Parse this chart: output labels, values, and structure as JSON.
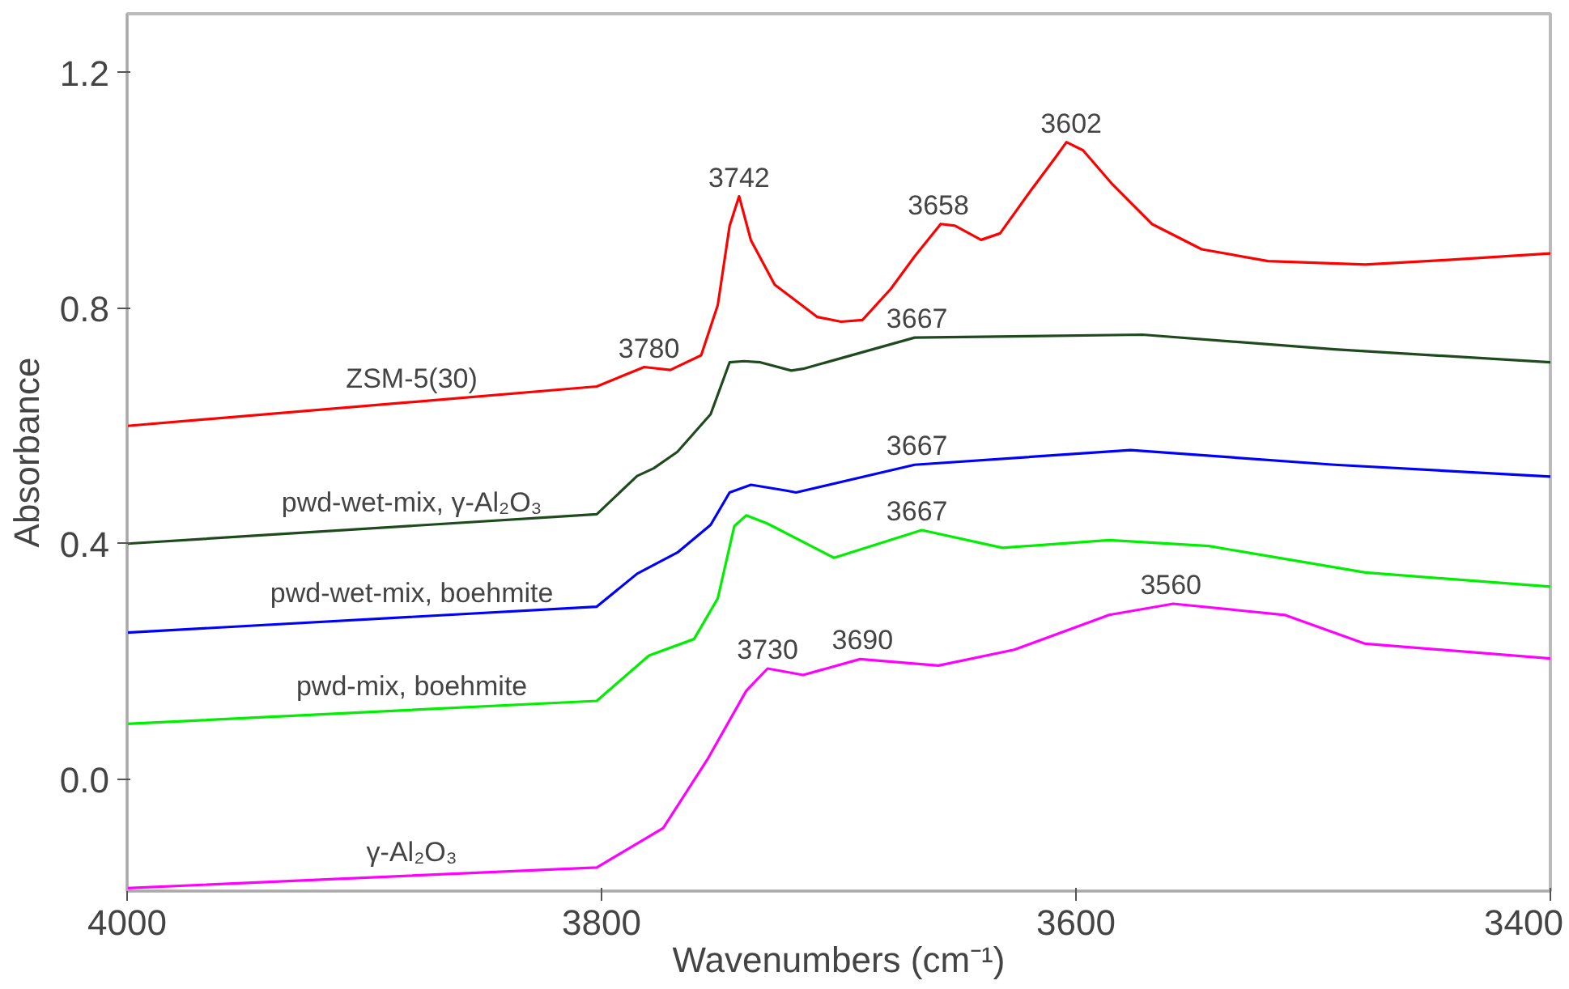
{
  "chart_data": {
    "type": "line",
    "xlabel": "Wavenumbers (cm⁻¹)",
    "ylabel": "Absorbance",
    "xlim": [
      4000,
      3400
    ],
    "ylim": [
      -0.19,
      1.3
    ],
    "xticks": [
      4000,
      3800,
      3600,
      3400
    ],
    "yticks": [
      {
        "value": 0,
        "label": "0.0"
      },
      {
        "value": 0.4,
        "label": "0.4"
      },
      {
        "value": 0.8,
        "label": "0.8"
      },
      {
        "value": 1.2,
        "label": "1.2"
      }
    ],
    "grid": false,
    "marker": "none",
    "line_style": "solid",
    "series": [
      {
        "name": "ZSM-5(30)",
        "color": "#ff0000",
        "x": [
          4000,
          3802,
          3782,
          3771,
          3758,
          3751,
          3746,
          3742,
          3737,
          3727,
          3709,
          3699,
          3690,
          3678,
          3668,
          3657,
          3651,
          3640,
          3632,
          3619,
          3609,
          3604,
          3597,
          3585,
          3568,
          3547,
          3519,
          3478,
          3443,
          3400
        ],
        "values": [
          0.6,
          0.667,
          0.7,
          0.695,
          0.72,
          0.805,
          0.94,
          0.99,
          0.915,
          0.84,
          0.785,
          0.777,
          0.78,
          0.833,
          0.888,
          0.943,
          0.94,
          0.916,
          0.927,
          1.0,
          1.054,
          1.082,
          1.068,
          1.012,
          0.943,
          0.9,
          0.88,
          0.874,
          0.882,
          0.893
        ]
      },
      {
        "name": "pwd-wet-mix, γ-Al₂O₃",
        "color": "#1e4a1e",
        "x": [
          4000,
          3802,
          3785,
          3778,
          3768,
          3754,
          3746,
          3740,
          3733,
          3720,
          3715,
          3668,
          3572,
          3491,
          3400
        ],
        "values": [
          0.4,
          0.45,
          0.515,
          0.528,
          0.556,
          0.62,
          0.708,
          0.71,
          0.708,
          0.694,
          0.697,
          0.75,
          0.755,
          0.73,
          0.708
        ]
      },
      {
        "name": "pwd-wet-mix, boehmite",
        "color": "#0000ff",
        "x": [
          4000,
          3802,
          3785,
          3768,
          3754,
          3746,
          3737,
          3722,
          3718,
          3668,
          3577,
          3491,
          3400
        ],
        "values": [
          0.249,
          0.293,
          0.349,
          0.385,
          0.432,
          0.487,
          0.5,
          0.49,
          0.487,
          0.534,
          0.559,
          0.534,
          0.514
        ]
      },
      {
        "name": "pwd-mix, boehmite",
        "color": "#00ee00",
        "x": [
          4000,
          3802,
          3780,
          3761,
          3751,
          3744,
          3739,
          3730,
          3702,
          3665,
          3631,
          3586,
          3544,
          3478,
          3400
        ],
        "values": [
          0.094,
          0.133,
          0.21,
          0.238,
          0.307,
          0.43,
          0.448,
          0.434,
          0.376,
          0.423,
          0.393,
          0.406,
          0.396,
          0.351,
          0.327
        ]
      },
      {
        "name": "γ-Al₂O₃",
        "color": "#ff00ff",
        "x": [
          4000,
          3802,
          3774,
          3755,
          3739,
          3730,
          3715,
          3691,
          3658,
          3626,
          3586,
          3559,
          3512,
          3478,
          3400
        ],
        "values": [
          -0.185,
          -0.15,
          -0.083,
          0.036,
          0.15,
          0.188,
          0.177,
          0.204,
          0.193,
          0.22,
          0.279,
          0.298,
          0.279,
          0.23,
          0.205
        ]
      }
    ],
    "annotations": [
      {
        "text": "3780",
        "x": 3780,
        "y": 0.7
      },
      {
        "text": "3742",
        "x": 3742,
        "y": 0.99
      },
      {
        "text": "3658",
        "x": 3658,
        "y": 0.943
      },
      {
        "text": "3602",
        "x": 3602,
        "y": 1.082
      },
      {
        "text": "3667",
        "x": 3667,
        "y": 0.75
      },
      {
        "text": "3667",
        "x": 3667,
        "y": 0.534
      },
      {
        "text": "3667",
        "x": 3667,
        "y": 0.423
      },
      {
        "text": "3730",
        "x": 3730,
        "y": 0.188
      },
      {
        "text": "3690",
        "x": 3690,
        "y": 0.204
      },
      {
        "text": "3560",
        "x": 3560,
        "y": 0.298
      }
    ]
  }
}
